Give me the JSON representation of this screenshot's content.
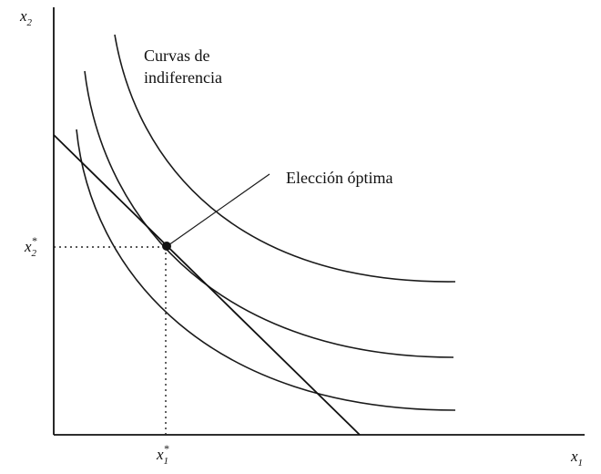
{
  "diagram": {
    "y_axis_label": {
      "base": "x",
      "sub": "2"
    },
    "x_axis_label": {
      "base": "x",
      "sub": "1"
    },
    "curves_label_line1": "Curvas de",
    "curves_label_line2": "indiferencia",
    "optimal_label": "Elección óptima",
    "x2_star": {
      "base": "x",
      "sup": "*",
      "sub": "2"
    },
    "x1_star": {
      "base": "x",
      "sup": "*",
      "sub": "1"
    }
  },
  "colors": {
    "ink": "#111111",
    "background": "#ffffff"
  }
}
